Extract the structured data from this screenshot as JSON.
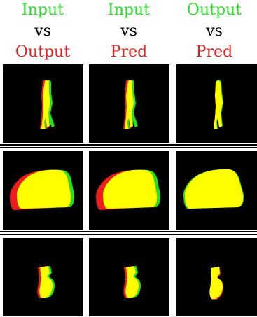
{
  "columns": [
    {
      "top": "Input",
      "middle": "vs",
      "bottom": "Output"
    },
    {
      "top": "Input",
      "middle": "vs",
      "bottom": "Pred"
    },
    {
      "top": "Output",
      "middle": "vs",
      "bottom": "Pred"
    }
  ],
  "colors": {
    "first": "#22e022",
    "second": "#ee1c1c",
    "overlap": "#ffff00",
    "background": "#000000"
  }
}
